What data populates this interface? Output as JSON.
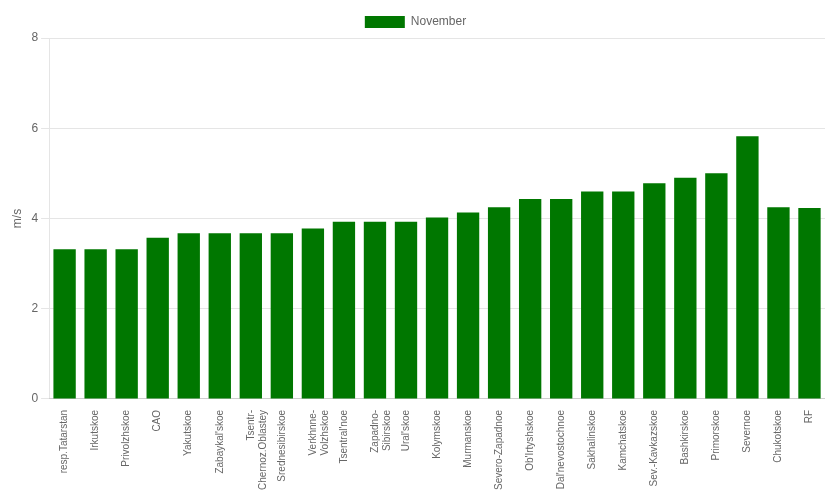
{
  "chart_data": {
    "type": "bar",
    "categories": [
      "resp.Tatarstan",
      "Irkutskoe",
      "Privolzhskoe",
      "CAO",
      "Yakutskoe",
      "Zabaykal'skoe",
      "Tsentr-\nChernoz.Oblastey",
      "Srednesibirskoe",
      "Verkhnne-\nVolzhskoe",
      "Tsentral'noe",
      "Zapadno-\nSibirskoe",
      "Ural'skoe",
      "Kolymskoe",
      "Murmanskoe",
      "Severo-Zapadnoe",
      "Ob'Irtyshskoe",
      "Dal'nevostochnoe",
      "Sakhalinskoe",
      "Kamchatskoe",
      "Sev.-Kavkazskoe",
      "Bashkirskoe",
      "Primorskoe",
      "Severnoe",
      "Chukotskoe",
      "RF"
    ],
    "series": [
      {
        "name": "November",
        "color": "#007700",
        "values": [
          3.32,
          3.32,
          3.32,
          3.57,
          3.67,
          3.67,
          3.67,
          3.67,
          3.78,
          3.93,
          3.93,
          3.93,
          4.02,
          4.13,
          4.25,
          4.43,
          4.43,
          4.6,
          4.6,
          4.78,
          4.9,
          5.0,
          5.82,
          4.25,
          4.23
        ]
      }
    ],
    "ylabel": "m/s",
    "ylim": [
      0,
      8
    ],
    "yticks": [
      0,
      2,
      4,
      6,
      8
    ],
    "grid": true,
    "legend": "top"
  }
}
